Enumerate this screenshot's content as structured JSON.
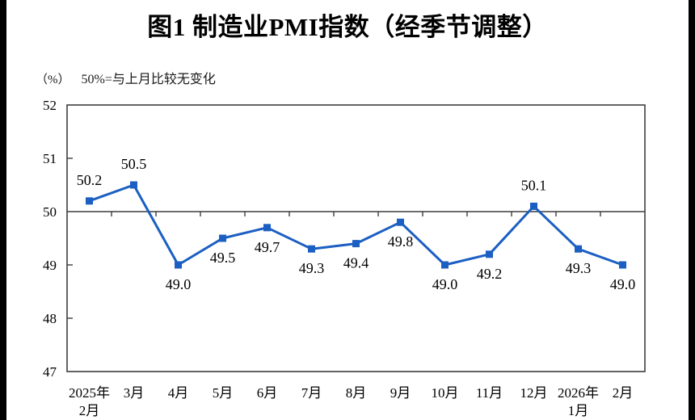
{
  "page": {
    "title": "图1  制造业PMI指数（经季节调整）",
    "unit_label": "（%）",
    "note": "50%=与上月比较无变化"
  },
  "chart_data": {
    "type": "line",
    "title": "图1 制造业PMI指数（经季节调整）",
    "ylabel": "（%）",
    "annotation": "50%=与上月比较无变化",
    "categories": [
      [
        "2025年",
        "2月"
      ],
      [
        "3月"
      ],
      [
        "4月"
      ],
      [
        "5月"
      ],
      [
        "6月"
      ],
      [
        "7月"
      ],
      [
        "8月"
      ],
      [
        "9月"
      ],
      [
        "10月"
      ],
      [
        "11月"
      ],
      [
        "12月"
      ],
      [
        "2026年",
        "1月"
      ],
      [
        "2月"
      ]
    ],
    "values": [
      50.2,
      50.5,
      49.0,
      49.5,
      49.7,
      49.3,
      49.4,
      49.8,
      49.0,
      49.2,
      50.1,
      49.3,
      49.0
    ],
    "data_labels": [
      "50.2",
      "50.5",
      "49.0",
      "49.5",
      "49.7",
      "49.3",
      "49.4",
      "49.8",
      "49.0",
      "49.2",
      "50.1",
      "49.3",
      "49.0"
    ],
    "ylim": [
      47,
      52
    ],
    "yticks": [
      47,
      48,
      49,
      50,
      51,
      52
    ],
    "reference_line": 50,
    "grid": false,
    "legend": "none",
    "marker": "square",
    "colors": {
      "line": "#1b5fc2",
      "marker": "#1b5fc2",
      "axis": "#3d3d3d",
      "text": "#000000"
    }
  }
}
